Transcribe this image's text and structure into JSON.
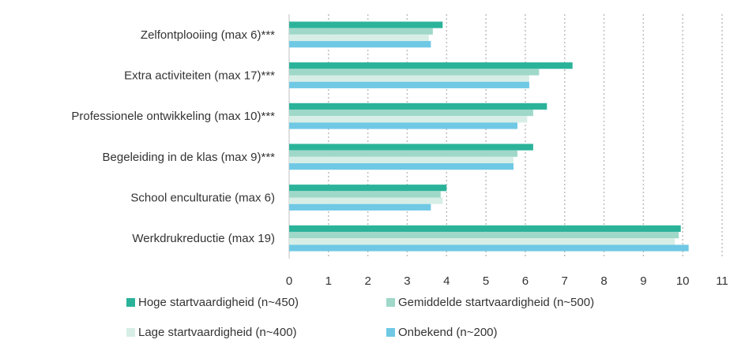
{
  "chart_data": {
    "type": "bar",
    "orientation": "horizontal",
    "categories": [
      "Zelfontplooiing  (max 6)***",
      "Extra activiteiten (max 17)***",
      "Professionele ontwikkeling  (max 10)***",
      "Begeleiding in de klas (max 9)***",
      "School enculturatie (max 6)",
      "Werkdrukreductie  (max 19)"
    ],
    "series": [
      {
        "name": "Hoge startvaardigheid (n~450)",
        "color": "#2bb39a",
        "values": [
          3.9,
          7.2,
          6.55,
          6.2,
          4.0,
          9.95
        ]
      },
      {
        "name": "Gemiddelde  startvaardigheid (n~500)",
        "color": "#9fd8c9",
        "values": [
          3.65,
          6.35,
          6.2,
          5.8,
          3.85,
          9.9
        ]
      },
      {
        "name": "Lage startvaardigheid (n~400)",
        "color": "#d7eee6",
        "values": [
          3.55,
          6.1,
          6.05,
          5.7,
          3.9,
          9.8
        ]
      },
      {
        "name": "Onbekend  (n~200)",
        "color": "#6fc9e5",
        "values": [
          3.6,
          6.1,
          5.8,
          5.7,
          3.6,
          10.15
        ]
      }
    ],
    "x_ticks": [
      "0",
      "1",
      "2",
      "3",
      "4",
      "5",
      "6",
      "7",
      "8",
      "9",
      "10",
      "11"
    ],
    "xlim": [
      0,
      11
    ],
    "grid": "vertical dotted",
    "legend_position": "bottom",
    "title": "",
    "xlabel": "",
    "ylabel": ""
  }
}
